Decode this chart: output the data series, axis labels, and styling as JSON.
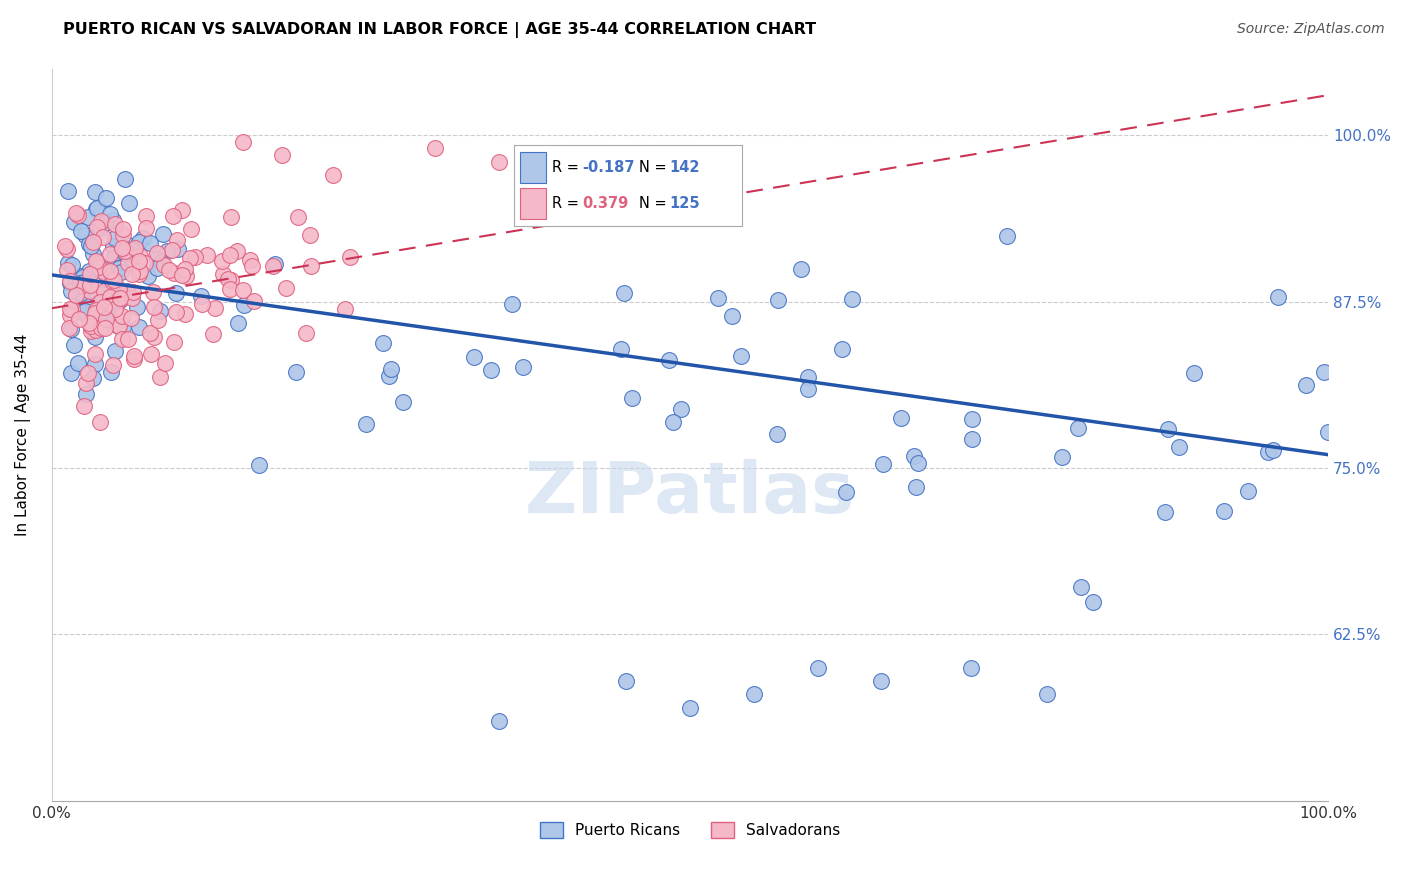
{
  "title": "PUERTO RICAN VS SALVADORAN IN LABOR FORCE | AGE 35-44 CORRELATION CHART",
  "source_text": "Source: ZipAtlas.com",
  "ylabel": "In Labor Force | Age 35-44",
  "xlim": [
    0.0,
    1.0
  ],
  "ylim": [
    0.5,
    1.05
  ],
  "yticks": [
    0.625,
    0.75,
    0.875,
    1.0
  ],
  "ytick_labels": [
    "62.5%",
    "75.0%",
    "87.5%",
    "100.0%"
  ],
  "xticks": [
    0.0,
    1.0
  ],
  "xtick_labels": [
    "0.0%",
    "100.0%"
  ],
  "blue_R": "-0.187",
  "blue_N": "142",
  "pink_R": "0.379",
  "pink_N": "125",
  "blue_color": "#aec6e8",
  "blue_edge_color": "#4472c4",
  "pink_color": "#f4b8c8",
  "pink_edge_color": "#e0607e",
  "blue_line_color": "#2255aa",
  "pink_line_color": "#cc3355",
  "tick_label_color": "#4472c4",
  "watermark": "ZIPatlas",
  "blue_line_x0": 0.0,
  "blue_line_y0": 0.895,
  "blue_line_x1": 1.0,
  "blue_line_y1": 0.76,
  "pink_line_x0": 0.0,
  "pink_line_y0": 0.87,
  "pink_line_x1": 1.0,
  "pink_line_y1": 1.03
}
